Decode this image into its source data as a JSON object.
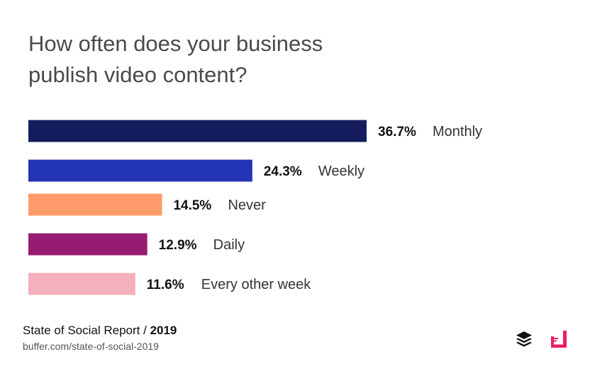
{
  "header": {
    "title_line1": "How often does your business",
    "title_line2": "publish video content?"
  },
  "chart_data": {
    "type": "bar",
    "orientation": "horizontal",
    "categories": [
      "Monthly",
      "Weekly",
      "Never",
      "Daily",
      "Every other week"
    ],
    "values": [
      36.7,
      24.3,
      14.5,
      12.9,
      11.6
    ],
    "value_labels": [
      "36.7%",
      "24.3%",
      "14.5%",
      "12.9%",
      "11.6%"
    ],
    "colors": [
      "#141c5e",
      "#2233b5",
      "#ff9b6a",
      "#971b72",
      "#f4b0bc"
    ],
    "xlim": [
      0,
      36.7
    ],
    "grid": false,
    "legend": "none"
  },
  "footer": {
    "report_label": "State of Social Report /",
    "year": "2019",
    "url": "buffer.com/state-of-social-2019"
  },
  "logos": {
    "buffer": "buffer-stack-icon",
    "brand": "pink-corner-logo-icon",
    "brand_color": "#e8215a"
  }
}
